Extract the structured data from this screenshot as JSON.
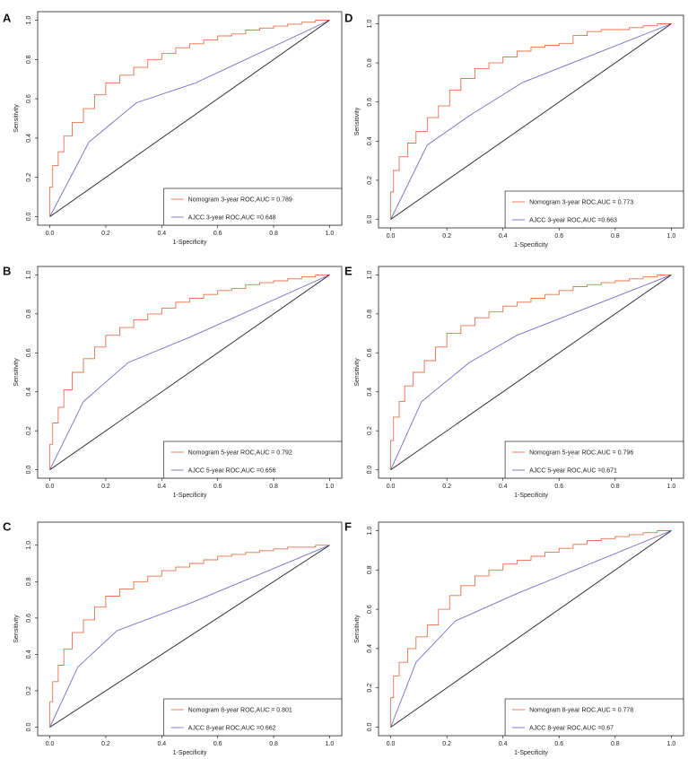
{
  "colors": {
    "nomogram": "#e8704e",
    "ajcc": "#6f6fc8",
    "diagonal": "#222222",
    "frame": "#222222"
  },
  "chart_data": [
    {
      "panel": "A",
      "type": "line",
      "xlabel": "1-Specificity",
      "ylabel": "Sensitivity",
      "xlim": [
        0,
        1
      ],
      "ylim": [
        0,
        1
      ],
      "xticks": [
        "0.0",
        "0.2",
        "0.4",
        "0.6",
        "0.8",
        "1.0"
      ],
      "yticks": [
        "0.0",
        "0.2",
        "0.4",
        "0.6",
        "0.8",
        "1.0"
      ],
      "legend_position": "bottom-right",
      "series": [
        {
          "name": "Nomogram 3-year ROC,AUC = 0.789",
          "kind": "nomogram",
          "x": [
            0,
            0.01,
            0.03,
            0.05,
            0.08,
            0.12,
            0.16,
            0.2,
            0.25,
            0.3,
            0.35,
            0.4,
            0.45,
            0.5,
            0.55,
            0.6,
            0.65,
            0.7,
            0.75,
            0.8,
            0.85,
            0.9,
            0.95,
            1.0
          ],
          "y": [
            0,
            0.15,
            0.26,
            0.33,
            0.41,
            0.48,
            0.55,
            0.62,
            0.68,
            0.72,
            0.76,
            0.8,
            0.83,
            0.86,
            0.88,
            0.9,
            0.92,
            0.93,
            0.95,
            0.96,
            0.97,
            0.98,
            0.99,
            1.0
          ]
        },
        {
          "name": "AJCC 3-year ROC,AUC =0.648",
          "kind": "ajcc",
          "x": [
            0,
            0.14,
            0.31,
            0.52,
            1.0
          ],
          "y": [
            0,
            0.38,
            0.58,
            0.68,
            1.0
          ]
        },
        {
          "name": "reference",
          "kind": "diagonal",
          "x": [
            0,
            1
          ],
          "y": [
            0,
            1
          ]
        }
      ]
    },
    {
      "panel": "D",
      "type": "line",
      "xlabel": "1-Specificity",
      "ylabel": "Sensitivity",
      "xlim": [
        0,
        1
      ],
      "ylim": [
        0,
        1
      ],
      "xticks": [
        "0.0",
        "0.2",
        "0.4",
        "0.6",
        "0.8",
        "1.0"
      ],
      "yticks": [
        "0.0",
        "0.2",
        "0.4",
        "0.6",
        "0.8",
        "1.0"
      ],
      "legend_position": "bottom-right",
      "series": [
        {
          "name": "Nomogram 3-year ROC,AUC = 0.773",
          "kind": "nomogram",
          "x": [
            0,
            0.01,
            0.03,
            0.06,
            0.09,
            0.13,
            0.17,
            0.21,
            0.25,
            0.3,
            0.35,
            0.4,
            0.45,
            0.5,
            0.55,
            0.6,
            0.65,
            0.7,
            0.75,
            0.8,
            0.85,
            0.9,
            0.95,
            1.0
          ],
          "y": [
            0,
            0.14,
            0.25,
            0.32,
            0.39,
            0.45,
            0.52,
            0.58,
            0.66,
            0.72,
            0.77,
            0.8,
            0.83,
            0.86,
            0.88,
            0.89,
            0.9,
            0.94,
            0.96,
            0.97,
            0.97,
            0.98,
            0.99,
            1.0
          ]
        },
        {
          "name": "AJCC 3-year ROC,AUC =0.663",
          "kind": "ajcc",
          "x": [
            0,
            0.13,
            0.28,
            0.47,
            1.0
          ],
          "y": [
            0,
            0.38,
            0.53,
            0.7,
            1.0
          ]
        },
        {
          "name": "reference",
          "kind": "diagonal",
          "x": [
            0,
            1
          ],
          "y": [
            0,
            1
          ]
        }
      ]
    },
    {
      "panel": "B",
      "type": "line",
      "xlabel": "1-Specificity",
      "ylabel": "Sensitivity",
      "xlim": [
        0,
        1
      ],
      "ylim": [
        0,
        1
      ],
      "xticks": [
        "0.0",
        "0.2",
        "0.4",
        "0.6",
        "0.8",
        "1.0"
      ],
      "yticks": [
        "0.0",
        "0.2",
        "0.4",
        "0.6",
        "0.8",
        "1.0"
      ],
      "legend_position": "bottom-right",
      "series": [
        {
          "name": "Nomogram 5-year ROC,AUC = 0.792",
          "kind": "nomogram",
          "x": [
            0,
            0.01,
            0.03,
            0.05,
            0.08,
            0.12,
            0.16,
            0.2,
            0.25,
            0.3,
            0.35,
            0.4,
            0.45,
            0.5,
            0.55,
            0.6,
            0.65,
            0.7,
            0.75,
            0.8,
            0.85,
            0.9,
            0.95,
            1.0
          ],
          "y": [
            0,
            0.13,
            0.24,
            0.32,
            0.41,
            0.5,
            0.57,
            0.63,
            0.69,
            0.73,
            0.77,
            0.8,
            0.83,
            0.86,
            0.88,
            0.9,
            0.92,
            0.93,
            0.95,
            0.96,
            0.97,
            0.98,
            0.99,
            1.0
          ]
        },
        {
          "name": "AJCC 5-year ROC,AUC =0.656",
          "kind": "ajcc",
          "x": [
            0,
            0.12,
            0.28,
            0.5,
            1.0
          ],
          "y": [
            0,
            0.35,
            0.55,
            0.68,
            1.0
          ]
        },
        {
          "name": "reference",
          "kind": "diagonal",
          "x": [
            0,
            1
          ],
          "y": [
            0,
            1
          ]
        }
      ]
    },
    {
      "panel": "E",
      "type": "line",
      "xlabel": "1-Specificity",
      "ylabel": "Sensitivity",
      "xlim": [
        0,
        1
      ],
      "ylim": [
        0,
        1
      ],
      "xticks": [
        "0.0",
        "0.2",
        "0.4",
        "0.6",
        "0.8",
        "1.0"
      ],
      "yticks": [
        "0.0",
        "0.2",
        "0.4",
        "0.6",
        "0.8",
        "1.0"
      ],
      "legend_position": "bottom-right",
      "series": [
        {
          "name": "Nomogram 5-year ROC,AUC = 0.796",
          "kind": "nomogram",
          "x": [
            0,
            0.01,
            0.03,
            0.05,
            0.08,
            0.12,
            0.16,
            0.2,
            0.25,
            0.3,
            0.35,
            0.4,
            0.45,
            0.5,
            0.55,
            0.6,
            0.65,
            0.7,
            0.75,
            0.8,
            0.85,
            0.9,
            0.95,
            1.0
          ],
          "y": [
            0,
            0.15,
            0.27,
            0.35,
            0.43,
            0.5,
            0.56,
            0.63,
            0.7,
            0.74,
            0.78,
            0.81,
            0.84,
            0.86,
            0.88,
            0.9,
            0.92,
            0.94,
            0.95,
            0.96,
            0.97,
            0.98,
            0.99,
            1.0
          ]
        },
        {
          "name": "AJCC 5-year ROC,AUC =0.671",
          "kind": "ajcc",
          "x": [
            0,
            0.11,
            0.28,
            0.45,
            1.0
          ],
          "y": [
            0,
            0.35,
            0.55,
            0.69,
            1.0
          ]
        },
        {
          "name": "reference",
          "kind": "diagonal",
          "x": [
            0,
            1
          ],
          "y": [
            0,
            1
          ]
        }
      ]
    },
    {
      "panel": "C",
      "type": "line",
      "xlabel": "1-Specificity",
      "ylabel": "Sensitivity",
      "xlim": [
        0,
        1
      ],
      "ylim": [
        0,
        1.08
      ],
      "xticks": [
        "0.0",
        "0.2",
        "0.4",
        "0.6",
        "0.8",
        "1.0"
      ],
      "yticks": [
        "0.0",
        "0.2",
        "0.4",
        "0.6",
        "0.8",
        "1.0"
      ],
      "legend_position": "bottom-right",
      "series": [
        {
          "name": "Nomogram 8-year ROC,AUC = 0.801",
          "kind": "nomogram",
          "x": [
            0,
            0.01,
            0.03,
            0.05,
            0.08,
            0.12,
            0.16,
            0.2,
            0.25,
            0.3,
            0.35,
            0.4,
            0.45,
            0.5,
            0.55,
            0.6,
            0.65,
            0.7,
            0.75,
            0.8,
            0.85,
            0.9,
            0.95,
            1.0
          ],
          "y": [
            0,
            0.14,
            0.25,
            0.34,
            0.43,
            0.52,
            0.59,
            0.66,
            0.72,
            0.76,
            0.8,
            0.83,
            0.86,
            0.88,
            0.9,
            0.92,
            0.94,
            0.95,
            0.96,
            0.97,
            0.98,
            0.99,
            0.99,
            1.0
          ]
        },
        {
          "name": "AJCC 8-year ROC,AUC =0.662",
          "kind": "ajcc",
          "x": [
            0,
            0.1,
            0.24,
            0.5,
            1.0
          ],
          "y": [
            0,
            0.33,
            0.53,
            0.68,
            1.0
          ]
        },
        {
          "name": "reference",
          "kind": "diagonal",
          "x": [
            0,
            1
          ],
          "y": [
            0,
            1
          ]
        }
      ]
    },
    {
      "panel": "F",
      "type": "line",
      "xlabel": "1-Specificity",
      "ylabel": "Sensitivity",
      "xlim": [
        0,
        1
      ],
      "ylim": [
        0,
        1
      ],
      "xticks": [
        "0.0",
        "0.2",
        "0.4",
        "0.6",
        "0.8",
        "1.0"
      ],
      "yticks": [
        "0.0",
        "0.2",
        "0.4",
        "0.6",
        "0.8",
        "1.0"
      ],
      "legend_position": "bottom-right",
      "series": [
        {
          "name": "Nomogram 8-year ROC,AUC = 0.778",
          "kind": "nomogram",
          "x": [
            0,
            0.01,
            0.03,
            0.06,
            0.09,
            0.13,
            0.17,
            0.21,
            0.25,
            0.3,
            0.35,
            0.4,
            0.45,
            0.5,
            0.55,
            0.6,
            0.65,
            0.7,
            0.75,
            0.8,
            0.85,
            0.9,
            0.95,
            1.0
          ],
          "y": [
            0,
            0.15,
            0.26,
            0.33,
            0.4,
            0.46,
            0.52,
            0.6,
            0.67,
            0.72,
            0.77,
            0.8,
            0.83,
            0.85,
            0.87,
            0.89,
            0.91,
            0.93,
            0.95,
            0.96,
            0.97,
            0.98,
            0.99,
            1.0
          ]
        },
        {
          "name": "AJCC 8-year ROC,AUC =0.67",
          "kind": "ajcc",
          "x": [
            0,
            0.09,
            0.23,
            0.45,
            1.0
          ],
          "y": [
            0,
            0.33,
            0.54,
            0.68,
            1.0
          ]
        },
        {
          "name": "reference",
          "kind": "diagonal",
          "x": [
            0,
            1
          ],
          "y": [
            0,
            1
          ]
        }
      ]
    }
  ]
}
